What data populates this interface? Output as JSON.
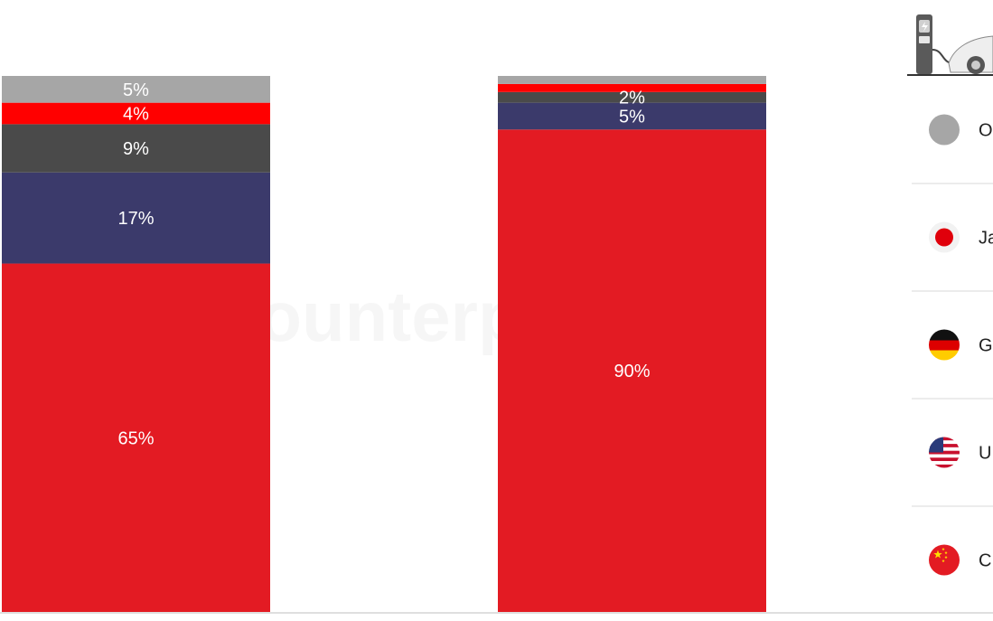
{
  "chart_data": {
    "type": "bar",
    "stacked": true,
    "categories": [
      "",
      ""
    ],
    "ylim": [
      0,
      100
    ],
    "grid": false,
    "legend_position": "right",
    "series": [
      {
        "name": "C",
        "color": "#E31B23",
        "icon": "china-flag-icon",
        "values": [
          65,
          90
        ],
        "labels": [
          "65%",
          "90%"
        ]
      },
      {
        "name": "U",
        "color": "#3B3A6B",
        "icon": "usa-flag-icon",
        "values": [
          17,
          5
        ],
        "labels": [
          "17%",
          "5%"
        ]
      },
      {
        "name": "G",
        "color": "#4A4A4A",
        "icon": "germany-flag-icon",
        "values": [
          9,
          2
        ],
        "labels": [
          "9%",
          "2%"
        ]
      },
      {
        "name": "Ja",
        "color": "#FF0000",
        "icon": "japan-flag-icon",
        "values": [
          4,
          1.5
        ],
        "labels": [
          "4%",
          ""
        ]
      },
      {
        "name": "O",
        "color": "#A6A6A6",
        "icon": "others-circle-icon",
        "values": [
          5,
          1.5
        ],
        "labels": [
          "5%",
          ""
        ]
      }
    ],
    "legend_order": [
      "O",
      "Ja",
      "G",
      "U",
      "C"
    ]
  },
  "watermark": {
    "text": "Counterpoint"
  },
  "header_icon": "ev-charging-car-icon",
  "colors": {
    "background": "#FFFFFF",
    "divider": "#D9D9D9",
    "axis": "#BFBFBF",
    "label": "#FFFFFF",
    "watermark": "#E8E8E8"
  }
}
